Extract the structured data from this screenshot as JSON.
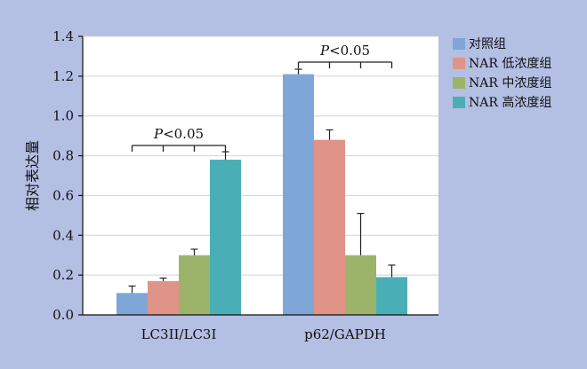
{
  "chart_data": {
    "type": "bar",
    "ylabel": "相对表达量",
    "xlabel": "",
    "ylim": [
      0,
      1.4
    ],
    "yticks": [
      "0.0",
      "0.2",
      "0.4",
      "0.6",
      "0.8",
      "1.0",
      "1.2",
      "1.4"
    ],
    "grid": true,
    "legend_position": "right",
    "categories": [
      "LC3II/LC3I",
      "p62/GAPDH"
    ],
    "series": [
      {
        "name": "对照组",
        "color": "#7ea7d8",
        "values": [
          0.11,
          1.21
        ],
        "errors": [
          0.035,
          0.025
        ]
      },
      {
        "name": "NAR 低浓度组",
        "color": "#e09389",
        "values": [
          0.17,
          0.88
        ],
        "errors": [
          0.015,
          0.05
        ]
      },
      {
        "name": "NAR 中浓度组",
        "color": "#9cb46a",
        "values": [
          0.3,
          0.3
        ],
        "errors": [
          0.03,
          0.21
        ]
      },
      {
        "name": "NAR 高浓度组",
        "color": "#4aaeb7",
        "values": [
          0.78,
          0.19
        ],
        "errors": [
          0.04,
          0.06
        ]
      }
    ],
    "annotations": [
      {
        "text_italic": "P",
        "text_rest": "<0.05",
        "category_index": 0
      },
      {
        "text_italic": "P",
        "text_rest": "<0.05",
        "category_index": 1
      }
    ]
  }
}
